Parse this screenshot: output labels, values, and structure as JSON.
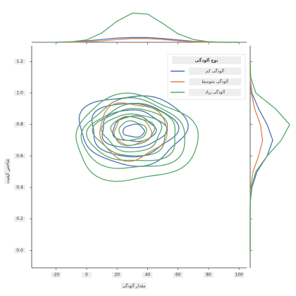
{
  "chart_data": {
    "type": "kde-joint",
    "x_label": "مقدار آلودگی",
    "y_label": "شاخص کیفیت",
    "legend_title": "نوع آلودگی",
    "legend_position": "upper right",
    "xlim": [
      -36,
      105
    ],
    "ylim": [
      -0.11,
      1.3
    ],
    "xticks": [
      -20,
      0,
      20,
      40,
      60,
      80,
      100
    ],
    "yticks": [
      {
        "value": 0,
        "label": "0.0"
      },
      0.2,
      0.4,
      0.6,
      0.8,
      {
        "value": 1,
        "label": "1.0"
      },
      1.2
    ],
    "density_x_grid": [
      -20,
      -10,
      0,
      10,
      20,
      30,
      40,
      50,
      60,
      70,
      80,
      90,
      100
    ],
    "density_y_grid": [
      0,
      0.1,
      0.2,
      0.3,
      0.4,
      0.5,
      0.6,
      0.7,
      0.8,
      0.9,
      1.0,
      1.1,
      1.2
    ],
    "density_lim": [
      0,
      75
    ],
    "series": [
      {
        "name": "آلودگی کم",
        "color": "#4c72b0",
        "contours": [
          {
            "cx": 30,
            "cy": 0.77,
            "rx": 35,
            "ry": 0.22
          },
          {
            "cx": 30,
            "cy": 0.77,
            "rx": 28,
            "ry": 0.17
          },
          {
            "cx": 30,
            "cy": 0.77,
            "rx": 21,
            "ry": 0.12
          },
          {
            "cx": 31,
            "cy": 0.77,
            "rx": 14,
            "ry": 0.08
          },
          {
            "cx": 31,
            "cy": 0.76,
            "rx": 7,
            "ry": 0.04
          }
        ],
        "x_density": [
          0,
          1,
          3,
          6,
          9,
          10,
          10,
          8,
          5,
          2,
          1,
          0,
          0
        ],
        "y_density": [
          0,
          0,
          0,
          0,
          3,
          12,
          30,
          40,
          30,
          15,
          3,
          0,
          0
        ]
      },
      {
        "name": "آلودگی متوسط",
        "color": "#dd8452",
        "contours": [
          {
            "cx": 30,
            "cy": 0.76,
            "rx": 22,
            "ry": 0.18
          },
          {
            "cx": 30,
            "cy": 0.76,
            "rx": 12,
            "ry": 0.09
          }
        ],
        "x_density": [
          0,
          0,
          1,
          3,
          6,
          8,
          8,
          6,
          3,
          1,
          0,
          0,
          0
        ],
        "y_density": [
          0,
          0,
          0,
          0,
          1,
          5,
          15,
          22,
          18,
          8,
          2,
          0,
          0
        ]
      },
      {
        "name": "آلودگی زیاد",
        "color": "#55a868",
        "contours": [
          {
            "cx": 32,
            "cy": 0.71,
            "rx": 40,
            "ry": 0.27
          },
          {
            "cx": 31,
            "cy": 0.73,
            "rx": 34,
            "ry": 0.22
          },
          {
            "cx": 31,
            "cy": 0.74,
            "rx": 29,
            "ry": 0.18
          },
          {
            "cx": 30,
            "cy": 0.75,
            "rx": 24,
            "ry": 0.15
          },
          {
            "cx": 30,
            "cy": 0.75,
            "rx": 19,
            "ry": 0.12
          },
          {
            "cx": 30,
            "cy": 0.76,
            "rx": 14,
            "ry": 0.09
          },
          {
            "cx": 30,
            "cy": 0.76,
            "rx": 9,
            "ry": 0.06
          }
        ],
        "x_density": [
          0,
          1,
          5,
          20,
          45,
          62,
          60,
          40,
          18,
          6,
          1,
          0,
          0
        ],
        "y_density": [
          0,
          0,
          0,
          0,
          2,
          10,
          30,
          55,
          70,
          45,
          10,
          1,
          0
        ]
      }
    ]
  }
}
